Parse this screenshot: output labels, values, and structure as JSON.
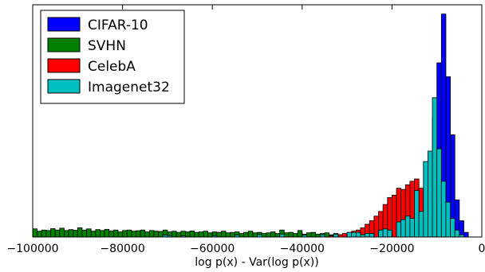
{
  "chart_data": {
    "type": "histogram",
    "xlabel": "log p(x) - Var(log p(x))",
    "ylabel": "",
    "xlim": [
      -100000,
      0
    ],
    "ylim": [
      0,
      1
    ],
    "x_ticks": [
      -100000,
      -80000,
      -60000,
      -40000,
      -20000,
      0
    ],
    "x_tick_labels": [
      "−100000",
      "−80000",
      "−60000",
      "−40000",
      "−20000",
      "0"
    ],
    "y_ticks_visible": false,
    "grid": false,
    "legend": {
      "placement": "top-left"
    },
    "bin_width": 1000,
    "series": [
      {
        "name": "CIFAR-10",
        "color": "#0000ff",
        "bins": [
          {
            "x": -12000,
            "h": 0.27
          },
          {
            "x": -11000,
            "h": 0.52
          },
          {
            "x": -10000,
            "h": 0.75
          },
          {
            "x": -9000,
            "h": 0.96
          },
          {
            "x": -8000,
            "h": 0.69
          },
          {
            "x": -7000,
            "h": 0.44
          },
          {
            "x": -6000,
            "h": 0.16
          },
          {
            "x": -5000,
            "h": 0.07
          },
          {
            "x": -4000,
            "h": 0.02
          }
        ]
      },
      {
        "name": "SVHN",
        "color": "#008000",
        "bins": [
          {
            "x": -100000,
            "h": 0.035
          },
          {
            "x": -99000,
            "h": 0.025
          },
          {
            "x": -98000,
            "h": 0.03
          },
          {
            "x": -97000,
            "h": 0.028
          },
          {
            "x": -96000,
            "h": 0.036
          },
          {
            "x": -95000,
            "h": 0.03
          },
          {
            "x": -94000,
            "h": 0.038
          },
          {
            "x": -93000,
            "h": 0.028
          },
          {
            "x": -92000,
            "h": 0.032
          },
          {
            "x": -91000,
            "h": 0.029
          },
          {
            "x": -90000,
            "h": 0.04
          },
          {
            "x": -89000,
            "h": 0.03
          },
          {
            "x": -88000,
            "h": 0.035
          },
          {
            "x": -87000,
            "h": 0.025
          },
          {
            "x": -86000,
            "h": 0.032
          },
          {
            "x": -85000,
            "h": 0.028
          },
          {
            "x": -84000,
            "h": 0.033
          },
          {
            "x": -83000,
            "h": 0.026
          },
          {
            "x": -82000,
            "h": 0.03
          },
          {
            "x": -81000,
            "h": 0.022
          },
          {
            "x": -80000,
            "h": 0.028
          },
          {
            "x": -79000,
            "h": 0.03
          },
          {
            "x": -78000,
            "h": 0.025
          },
          {
            "x": -77000,
            "h": 0.027
          },
          {
            "x": -76000,
            "h": 0.03
          },
          {
            "x": -75000,
            "h": 0.022
          },
          {
            "x": -74000,
            "h": 0.028
          },
          {
            "x": -73000,
            "h": 0.025
          },
          {
            "x": -72000,
            "h": 0.024
          },
          {
            "x": -71000,
            "h": 0.03
          },
          {
            "x": -70000,
            "h": 0.022
          },
          {
            "x": -69000,
            "h": 0.025
          },
          {
            "x": -68000,
            "h": 0.02
          },
          {
            "x": -67000,
            "h": 0.025
          },
          {
            "x": -66000,
            "h": 0.022
          },
          {
            "x": -65000,
            "h": 0.026
          },
          {
            "x": -64000,
            "h": 0.02
          },
          {
            "x": -63000,
            "h": 0.022
          },
          {
            "x": -62000,
            "h": 0.025
          },
          {
            "x": -61000,
            "h": 0.018
          },
          {
            "x": -60000,
            "h": 0.022
          },
          {
            "x": -59000,
            "h": 0.02
          },
          {
            "x": -58000,
            "h": 0.025
          },
          {
            "x": -57000,
            "h": 0.018
          },
          {
            "x": -56000,
            "h": 0.02
          },
          {
            "x": -55000,
            "h": 0.022
          },
          {
            "x": -54000,
            "h": 0.015
          },
          {
            "x": -53000,
            "h": 0.02
          },
          {
            "x": -52000,
            "h": 0.025
          },
          {
            "x": -51000,
            "h": 0.018
          },
          {
            "x": -50000,
            "h": 0.02
          },
          {
            "x": -49000,
            "h": 0.015
          },
          {
            "x": -48000,
            "h": 0.018
          },
          {
            "x": -47000,
            "h": 0.022
          },
          {
            "x": -46000,
            "h": 0.015
          },
          {
            "x": -45000,
            "h": 0.03
          },
          {
            "x": -44000,
            "h": 0.018
          },
          {
            "x": -43000,
            "h": 0.02
          },
          {
            "x": -42000,
            "h": 0.015
          },
          {
            "x": -41000,
            "h": 0.028
          },
          {
            "x": -40000,
            "h": 0.012
          },
          {
            "x": -39000,
            "h": 0.018
          },
          {
            "x": -38000,
            "h": 0.02
          },
          {
            "x": -37000,
            "h": 0.012
          },
          {
            "x": -36000,
            "h": 0.015
          },
          {
            "x": -35000,
            "h": 0.018
          },
          {
            "x": -34000,
            "h": 0.01
          },
          {
            "x": -33000,
            "h": 0.015
          },
          {
            "x": -32000,
            "h": 0.01
          },
          {
            "x": -31000,
            "h": 0.012
          },
          {
            "x": -30000,
            "h": 0.01
          },
          {
            "x": -29000,
            "h": 0.008
          },
          {
            "x": -28000,
            "h": 0.01
          },
          {
            "x": -27000,
            "h": 0.008
          },
          {
            "x": -26000,
            "h": 0.006
          },
          {
            "x": -25000,
            "h": 0.008
          },
          {
            "x": -24000,
            "h": 0.006
          },
          {
            "x": -23000,
            "h": 0.005
          },
          {
            "x": -22000,
            "h": 0.006
          },
          {
            "x": -21000,
            "h": 0.004
          },
          {
            "x": -20000,
            "h": 0.005
          },
          {
            "x": -19000,
            "h": 0.004
          },
          {
            "x": -18000,
            "h": 0.005
          },
          {
            "x": -17000,
            "h": 0.004
          }
        ]
      },
      {
        "name": "CelebA",
        "color": "#ff0000",
        "bins": [
          {
            "x": -34000,
            "h": 0.005
          },
          {
            "x": -33000,
            "h": 0.008
          },
          {
            "x": -32000,
            "h": 0.01
          },
          {
            "x": -31000,
            "h": 0.015
          },
          {
            "x": -30000,
            "h": 0.02
          },
          {
            "x": -29000,
            "h": 0.025
          },
          {
            "x": -28000,
            "h": 0.03
          },
          {
            "x": -27000,
            "h": 0.04
          },
          {
            "x": -26000,
            "h": 0.055
          },
          {
            "x": -25000,
            "h": 0.07
          },
          {
            "x": -24000,
            "h": 0.09
          },
          {
            "x": -23000,
            "h": 0.11
          },
          {
            "x": -22000,
            "h": 0.14
          },
          {
            "x": -21000,
            "h": 0.17
          },
          {
            "x": -20000,
            "h": 0.18
          },
          {
            "x": -19000,
            "h": 0.21
          },
          {
            "x": -18000,
            "h": 0.205
          },
          {
            "x": -17000,
            "h": 0.225
          },
          {
            "x": -16000,
            "h": 0.24
          },
          {
            "x": -15000,
            "h": 0.25
          },
          {
            "x": -14000,
            "h": 0.21
          },
          {
            "x": -13000,
            "h": 0.14
          },
          {
            "x": -12000,
            "h": 0.08
          },
          {
            "x": -11000,
            "h": 0.04
          },
          {
            "x": -10000,
            "h": 0.02
          }
        ]
      },
      {
        "name": "Imagenet32",
        "color": "#00bfbf",
        "bins": [
          {
            "x": -71000,
            "h": 0.008
          },
          {
            "x": -70000,
            "h": 0.006
          },
          {
            "x": -67000,
            "h": 0.005
          },
          {
            "x": -60000,
            "h": 0.006
          },
          {
            "x": -55000,
            "h": 0.008
          },
          {
            "x": -50000,
            "h": 0.01
          },
          {
            "x": -45000,
            "h": 0.012
          },
          {
            "x": -40000,
            "h": 0.008
          },
          {
            "x": -36000,
            "h": 0.01
          },
          {
            "x": -33000,
            "h": 0.012
          },
          {
            "x": -30000,
            "h": 0.02
          },
          {
            "x": -29000,
            "h": 0.02
          },
          {
            "x": -28000,
            "h": 0.02
          },
          {
            "x": -27000,
            "h": 0.01
          },
          {
            "x": -26000,
            "h": 0.015
          },
          {
            "x": -25000,
            "h": 0.015
          },
          {
            "x": -23000,
            "h": 0.03
          },
          {
            "x": -22000,
            "h": 0.035
          },
          {
            "x": -21000,
            "h": 0.03
          },
          {
            "x": -19000,
            "h": 0.065
          },
          {
            "x": -18000,
            "h": 0.075
          },
          {
            "x": -17000,
            "h": 0.09
          },
          {
            "x": -16000,
            "h": 0.08
          },
          {
            "x": -15000,
            "h": 0.2
          },
          {
            "x": -14000,
            "h": 0.11
          },
          {
            "x": -13000,
            "h": 0.325
          },
          {
            "x": -12000,
            "h": 0.37
          },
          {
            "x": -11000,
            "h": 0.6
          },
          {
            "x": -10000,
            "h": 0.38
          },
          {
            "x": -9000,
            "h": 0.24
          },
          {
            "x": -8000,
            "h": 0.15
          },
          {
            "x": -7000,
            "h": 0.08
          },
          {
            "x": -6000,
            "h": 0.03
          },
          {
            "x": -5000,
            "h": 0.01
          }
        ]
      }
    ]
  }
}
